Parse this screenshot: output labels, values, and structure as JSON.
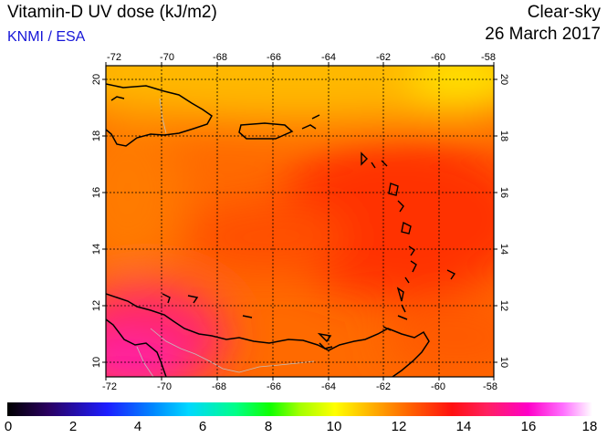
{
  "header": {
    "title": "Vitamin-D UV dose (kJ/m2)",
    "credit": "KNMI / ESA",
    "product": "Clear-sky",
    "date": "26 March 2017"
  },
  "map": {
    "lon_range": [
      -72,
      -58
    ],
    "lat_range": [
      9.5,
      20.5
    ],
    "lon_ticks": [
      "-72",
      "-70",
      "-68",
      "-66",
      "-64",
      "-62",
      "-60",
      "-58"
    ],
    "lat_ticks": [
      "20",
      "18",
      "16",
      "14",
      "12",
      "10"
    ],
    "grid": true,
    "field_colors": {
      "yellow": "#ffc000",
      "orange": "#ff8000",
      "red": "#ff3000",
      "magenta": "#ff1a8c"
    }
  },
  "colorbar": {
    "labels": [
      "0",
      "2",
      "4",
      "6",
      "8",
      "10",
      "12",
      "14",
      "16",
      "18"
    ],
    "min": 0,
    "max": 18
  }
}
